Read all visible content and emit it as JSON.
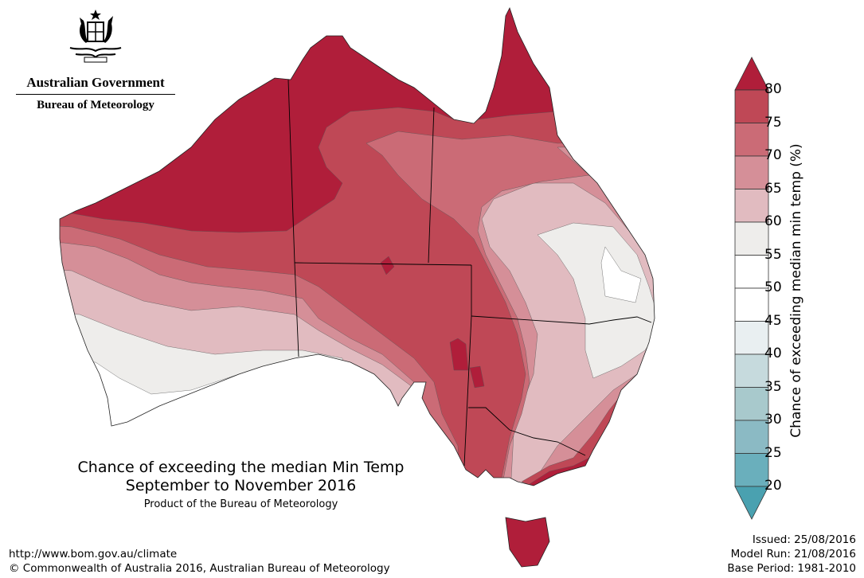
{
  "logo": {
    "government": "Australian Government",
    "agency": "Bureau of Meteorology",
    "emblem": "commonwealth-coat-of-arms"
  },
  "map": {
    "title_line1": "Chance of exceeding the median Min Temp",
    "title_line2": "September to November 2016",
    "subtitle": "Product of the Bureau of Meteorology",
    "region": "Australia"
  },
  "legend": {
    "title": "Chance of exceeding median min temp (%)",
    "ticks": [
      "80",
      "75",
      "70",
      "65",
      "60",
      "55",
      "50",
      "45",
      "40",
      "35",
      "30",
      "25",
      "20"
    ],
    "above_color": "#b01e3a",
    "below_color": "#4aa1b0",
    "bins": [
      {
        "range": "75-80",
        "color": "#bf4856"
      },
      {
        "range": "70-75",
        "color": "#cb6b76"
      },
      {
        "range": "65-70",
        "color": "#d58f98"
      },
      {
        "range": "60-65",
        "color": "#e1bbc0"
      },
      {
        "range": "55-60",
        "color": "#eeedeb"
      },
      {
        "range": "50-55",
        "color": "#ffffff"
      },
      {
        "range": "45-50",
        "color": "#ffffff"
      },
      {
        "range": "40-45",
        "color": "#e9eff1"
      },
      {
        "range": "35-40",
        "color": "#c6dadd"
      },
      {
        "range": "30-35",
        "color": "#a8c9cc"
      },
      {
        "range": "25-30",
        "color": "#8bbac4"
      },
      {
        "range": "20-25",
        "color": "#6aafbc"
      }
    ]
  },
  "footer": {
    "url": "http://www.bom.gov.au/climate",
    "copyright": "© Commonwealth of Australia 2016, Australian Bureau of Meteorology",
    "issued": "Issued: 25/08/2016",
    "model_run": "Model Run: 21/08/2016",
    "base_period": "Base Period: 1981-2010"
  }
}
